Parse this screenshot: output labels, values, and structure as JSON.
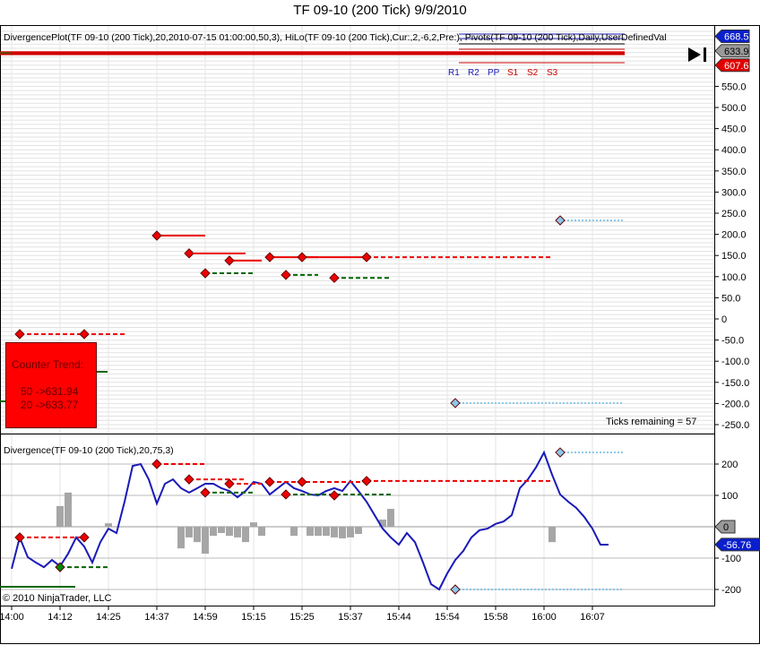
{
  "title": "TF 09-10 (200 Tick)  9/9/2010",
  "upper_label": "DivergencePlot(TF 09-10 (200 Tick),20,2010-07-15 01:00:00,50,3), HiLo(TF 09-10 (200 Tick),Cur:,2,-6,2,Pre:), Pivots(TF 09-10 (200 Tick),Daily,UserDefinedVal",
  "lower_label": "Divergence(TF 09-10 (200 Tick),20,75,3)",
  "copyright": "© 2010 NinjaTrader, LLC",
  "ticks_remaining": "Ticks remaining = 57",
  "counter_trend": {
    "title": "Counter Trend:",
    "line1": "50 ->631.94",
    "line2": "20 ->633.77"
  },
  "pivot_labels": [
    "R1",
    "R2",
    "PP",
    "S1",
    "S2",
    "S3"
  ],
  "price_tags": [
    {
      "text": "668.5",
      "value": 668.5,
      "color": "#0a1fcc"
    },
    {
      "text": "633.9",
      "value": 633.9,
      "color": "#999999"
    },
    {
      "text": "607.6",
      "value": 607.6,
      "color": "#e00000"
    }
  ],
  "lower_tags": [
    {
      "text": "0",
      "value": 0,
      "color": "#999999"
    },
    {
      "text": "-56.76",
      "value": -56.76,
      "color": "#0a1fcc"
    }
  ],
  "chart_data": [
    {
      "type": "line",
      "title": "",
      "ylim": [
        -270,
        680
      ],
      "yticks": [
        "550.0",
        "500.0",
        "450.0",
        "400.0",
        "350.0",
        "300.0",
        "250.0",
        "200.0",
        "150.0",
        "100.0",
        "50.0",
        "0",
        "-50.0",
        "-100.0",
        "-150.0",
        "-200.0",
        "-250.0"
      ],
      "red_markers": [
        [
          1,
          -36
        ],
        [
          9,
          -36
        ],
        [
          18,
          197
        ],
        [
          22,
          155
        ],
        [
          24,
          108
        ],
        [
          27,
          138
        ],
        [
          32,
          146
        ],
        [
          34,
          104
        ],
        [
          36,
          146
        ],
        [
          40,
          97
        ],
        [
          44,
          146
        ]
      ],
      "blue_markers": [
        [
          68,
          233
        ],
        [
          55,
          -199
        ]
      ]
    },
    {
      "type": "line",
      "ylim": [
        -245,
        265
      ],
      "yticks": [
        "200",
        "100",
        "0",
        "-100",
        "-200"
      ],
      "xticks": [
        "14:00",
        "14:12",
        "14:25",
        "14:37",
        "14:59",
        "15:15",
        "15:25",
        "15:37",
        "15:44",
        "15:54",
        "15:58",
        "16:00",
        "16:07"
      ],
      "divergence": [
        -134,
        -34,
        -97,
        -114,
        -129,
        -106,
        -126,
        -86,
        -34,
        -63,
        -114,
        -49,
        -6,
        -20,
        80,
        194,
        200,
        151,
        74,
        137,
        151,
        123,
        109,
        123,
        137,
        137,
        123,
        114,
        94,
        114,
        143,
        137,
        103,
        123,
        143,
        123,
        114,
        103,
        100,
        114,
        123,
        114,
        146,
        114,
        80,
        37,
        -6,
        -34,
        -57,
        -20,
        -49,
        -114,
        -183,
        -200,
        -149,
        -106,
        -77,
        -34,
        -11,
        -6,
        9,
        17,
        37,
        123,
        151,
        189,
        237,
        166,
        103,
        80,
        60,
        31,
        -6,
        -57,
        -57
      ],
      "histogram": [
        [
          6,
          66
        ],
        [
          7,
          109
        ],
        [
          12,
          11
        ],
        [
          21,
          -69
        ],
        [
          22,
          -34
        ],
        [
          23,
          -49
        ],
        [
          24,
          -86
        ],
        [
          25,
          -29
        ],
        [
          26,
          -20
        ],
        [
          27,
          -29
        ],
        [
          28,
          -34
        ],
        [
          29,
          -49
        ],
        [
          30,
          14
        ],
        [
          31,
          -29
        ],
        [
          35,
          -29
        ],
        [
          37,
          -29
        ],
        [
          38,
          -29
        ],
        [
          39,
          -29
        ],
        [
          40,
          -34
        ],
        [
          41,
          -37
        ],
        [
          42,
          -34
        ],
        [
          43,
          -23
        ],
        [
          46,
          23
        ],
        [
          47,
          57
        ],
        [
          67,
          -49
        ]
      ],
      "colors": {
        "line": "#1a1ab8",
        "hist": "#a6a6a6"
      }
    }
  ]
}
